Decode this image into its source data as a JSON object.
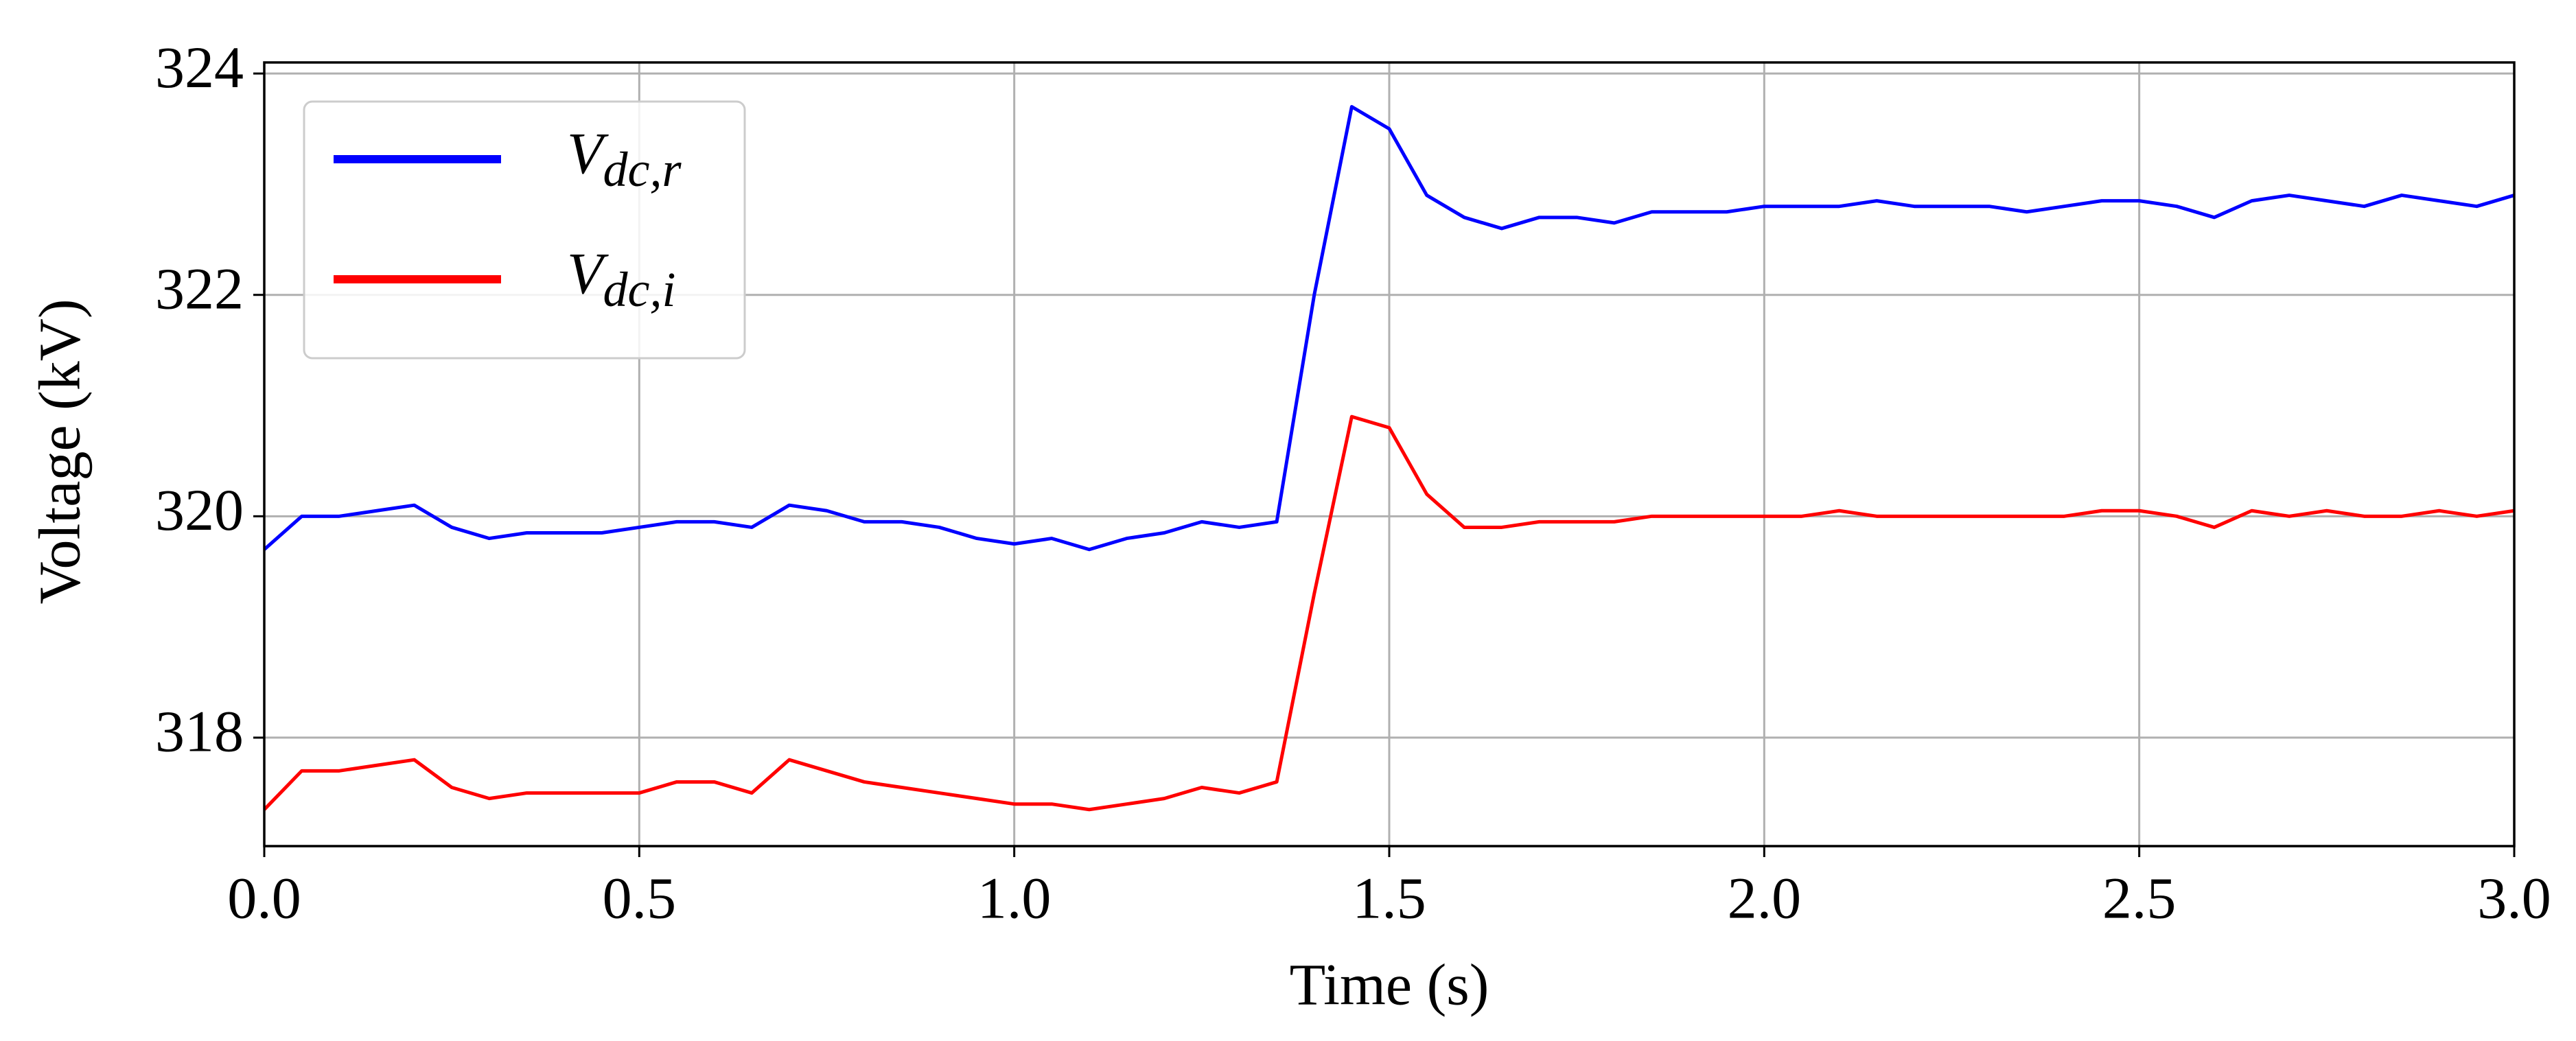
{
  "chart_data": {
    "type": "line",
    "xlabel": "Time (s)",
    "ylabel": "Voltage (kV)",
    "x": [
      0.0,
      0.05,
      0.1,
      0.15,
      0.2,
      0.25,
      0.3,
      0.35,
      0.4,
      0.45,
      0.5,
      0.55,
      0.6,
      0.65,
      0.7,
      0.75,
      0.8,
      0.85,
      0.9,
      0.95,
      1.0,
      1.05,
      1.1,
      1.15,
      1.2,
      1.25,
      1.3,
      1.35,
      1.4,
      1.45,
      1.5,
      1.55,
      1.6,
      1.65,
      1.7,
      1.75,
      1.8,
      1.85,
      1.9,
      1.95,
      2.0,
      2.05,
      2.1,
      2.15,
      2.2,
      2.25,
      2.3,
      2.35,
      2.4,
      2.45,
      2.5,
      2.55,
      2.6,
      2.65,
      2.7,
      2.75,
      2.8,
      2.85,
      2.9,
      2.95,
      3.0
    ],
    "series": [
      {
        "name": "Vdc,r",
        "color": "#0000ff",
        "values": [
          319.7,
          320.0,
          320.0,
          320.05,
          320.1,
          319.9,
          319.8,
          319.85,
          319.85,
          319.85,
          319.9,
          319.95,
          319.95,
          319.9,
          320.1,
          320.05,
          319.95,
          319.95,
          319.9,
          319.8,
          319.75,
          319.8,
          319.7,
          319.8,
          319.85,
          319.95,
          319.9,
          319.95,
          322.0,
          323.7,
          323.5,
          322.9,
          322.7,
          322.6,
          322.7,
          322.7,
          322.65,
          322.75,
          322.75,
          322.75,
          322.8,
          322.8,
          322.8,
          322.85,
          322.8,
          322.8,
          322.8,
          322.75,
          322.8,
          322.85,
          322.85,
          322.8,
          322.7,
          322.85,
          322.9,
          322.85,
          322.8,
          322.9,
          322.85,
          322.8,
          322.9
        ]
      },
      {
        "name": "Vdc,i",
        "color": "#ff0000",
        "values": [
          317.35,
          317.7,
          317.7,
          317.75,
          317.8,
          317.55,
          317.45,
          317.5,
          317.5,
          317.5,
          317.5,
          317.6,
          317.6,
          317.5,
          317.8,
          317.7,
          317.6,
          317.55,
          317.5,
          317.45,
          317.4,
          317.4,
          317.35,
          317.4,
          317.45,
          317.55,
          317.5,
          317.6,
          319.3,
          320.9,
          320.8,
          320.2,
          319.9,
          319.9,
          319.95,
          319.95,
          319.95,
          320.0,
          320.0,
          320.0,
          320.0,
          320.0,
          320.05,
          320.0,
          320.0,
          320.0,
          320.0,
          320.0,
          320.0,
          320.05,
          320.05,
          320.0,
          319.9,
          320.05,
          320.0,
          320.05,
          320.0,
          320.0,
          320.05,
          320.0,
          320.05
        ]
      }
    ],
    "xlim": [
      0,
      3
    ],
    "xticks": [
      {
        "value": 0,
        "label": "0.0"
      },
      0.5,
      {
        "value": 1,
        "label": "1.0"
      },
      1.5,
      {
        "value": 2,
        "label": "2.0"
      },
      2.5,
      {
        "value": 3,
        "label": "3.0"
      }
    ],
    "ylim": [
      317.02,
      324.1
    ],
    "yticks": [
      318,
      320,
      322,
      324
    ],
    "grid": true,
    "legend": "upper left"
  }
}
